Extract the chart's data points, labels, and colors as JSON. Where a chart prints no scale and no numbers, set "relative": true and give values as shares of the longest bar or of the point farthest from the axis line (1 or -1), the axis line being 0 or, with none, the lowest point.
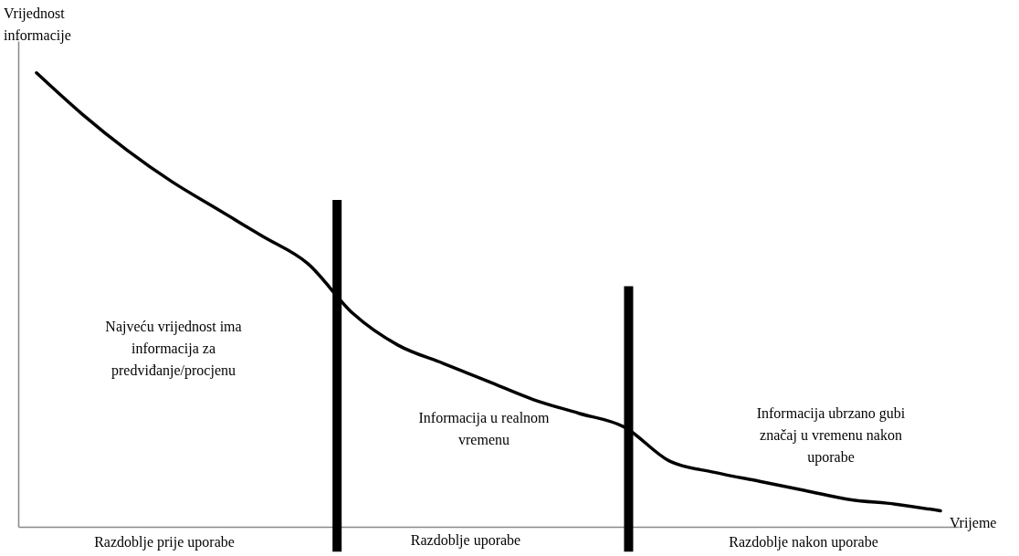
{
  "chart_data": {
    "type": "line",
    "relative": true,
    "xlabel": "Vrijeme",
    "ylabel": "Vrijednost informacije",
    "categories": [
      null,
      null,
      null,
      null,
      null,
      null,
      null,
      null,
      null,
      null,
      null,
      null,
      null,
      null,
      null,
      null,
      null,
      null,
      null,
      null,
      null
    ],
    "series": [
      {
        "color": "#000000",
        "values": [
          1.0,
          0.91,
          0.83,
          0.76,
          0.7,
          0.64,
          0.58,
          0.47,
          0.4,
          0.36,
          0.32,
          0.28,
          0.25,
          0.22,
          0.145,
          0.12,
          0.1,
          0.08,
          0.06,
          0.05,
          0.035
        ]
      }
    ],
    "annotations": [
      "Najveću vrijednost ima informacija za predviđanje/procjenu",
      "Informacija u realnom vremenu",
      "Informacija ubrzano gubi značaj u vremenu nakon uporabe",
      "Razdoblje prije uporabe",
      "Razdoblje uporabe",
      "Razdoblje nakon uporabe"
    ],
    "grid": false,
    "marker": "none",
    "line_style": "solid"
  }
}
